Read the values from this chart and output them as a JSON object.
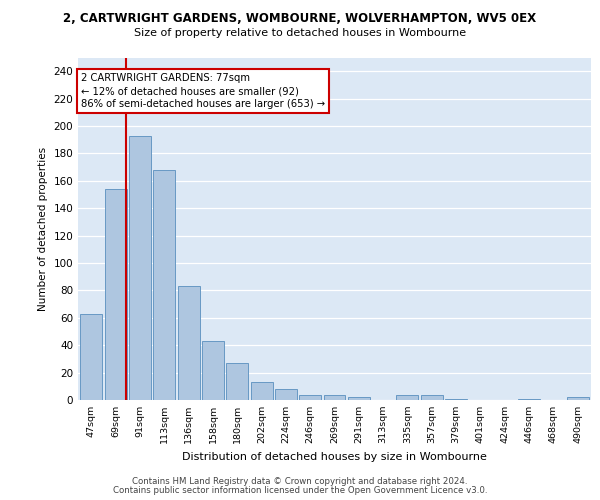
{
  "title_line1": "2, CARTWRIGHT GARDENS, WOMBOURNE, WOLVERHAMPTON, WV5 0EX",
  "title_line2": "Size of property relative to detached houses in Wombourne",
  "xlabel": "Distribution of detached houses by size in Wombourne",
  "ylabel": "Number of detached properties",
  "categories": [
    "47sqm",
    "69sqm",
    "91sqm",
    "113sqm",
    "136sqm",
    "158sqm",
    "180sqm",
    "202sqm",
    "224sqm",
    "246sqm",
    "269sqm",
    "291sqm",
    "313sqm",
    "335sqm",
    "357sqm",
    "379sqm",
    "401sqm",
    "424sqm",
    "446sqm",
    "468sqm",
    "490sqm"
  ],
  "values": [
    63,
    154,
    193,
    168,
    83,
    43,
    27,
    13,
    8,
    4,
    4,
    2,
    0,
    4,
    4,
    1,
    0,
    0,
    1,
    0,
    2
  ],
  "bar_color": "#aec6e0",
  "bar_edge_color": "#6899c4",
  "background_color": "#dce8f5",
  "grid_color": "#ffffff",
  "vline_color": "#cc0000",
  "vline_pos": 1.43,
  "annotation_text": "2 CARTWRIGHT GARDENS: 77sqm\n← 12% of detached houses are smaller (92)\n86% of semi-detached houses are larger (653) →",
  "annotation_box_color": "#ffffff",
  "annotation_box_edge": "#cc0000",
  "ylim": [
    0,
    250
  ],
  "yticks": [
    0,
    20,
    40,
    60,
    80,
    100,
    120,
    140,
    160,
    180,
    200,
    220,
    240
  ],
  "footer_line1": "Contains HM Land Registry data © Crown copyright and database right 2024.",
  "footer_line2": "Contains public sector information licensed under the Open Government Licence v3.0."
}
